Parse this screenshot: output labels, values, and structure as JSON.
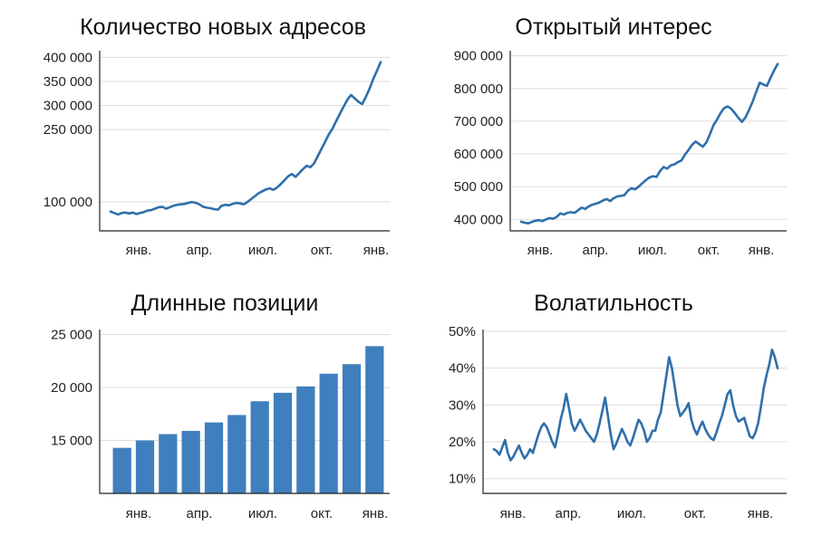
{
  "chart_data": [
    {
      "type": "line",
      "title": "Количество новых адресов",
      "x_ticks": [
        "янв.",
        "апр.",
        "июл.",
        "окт.",
        "янв."
      ],
      "y_ticks": [
        "100 000",
        "250 000",
        "300 000",
        "350 000",
        "400 000"
      ],
      "y_tick_values": [
        100000,
        250000,
        300000,
        350000,
        400000
      ],
      "ylim": [
        40000,
        410000
      ],
      "grid": true,
      "values": [
        80000,
        77000,
        74000,
        77000,
        78000,
        76000,
        78000,
        75000,
        77000,
        79000,
        82000,
        83000,
        86000,
        89000,
        90000,
        86000,
        89000,
        92000,
        94000,
        95000,
        96000,
        98000,
        100000,
        98000,
        95000,
        90000,
        88000,
        87000,
        85000,
        84000,
        92000,
        94000,
        93000,
        96000,
        98000,
        97000,
        95000,
        100000,
        106000,
        112000,
        118000,
        122000,
        126000,
        128000,
        125000,
        130000,
        137000,
        145000,
        153000,
        158000,
        152000,
        160000,
        168000,
        175000,
        172000,
        180000,
        195000,
        210000,
        225000,
        240000,
        252000,
        268000,
        283000,
        298000,
        312000,
        322000,
        315000,
        308000,
        303000,
        318000,
        335000,
        355000,
        372000,
        390000
      ]
    },
    {
      "type": "line",
      "title": "Открытый интерес",
      "x_ticks": [
        "янв.",
        "апр.",
        "июл.",
        "окт.",
        "янв."
      ],
      "y_ticks": [
        "400 000",
        "500 000",
        "600 000",
        "700 000",
        "800 000",
        "900 000"
      ],
      "y_tick_values": [
        400000,
        500000,
        600000,
        700000,
        800000,
        900000
      ],
      "ylim": [
        365000,
        910000
      ],
      "grid": true,
      "values": [
        393000,
        390000,
        388000,
        392000,
        396000,
        398000,
        395000,
        400000,
        404000,
        402000,
        408000,
        418000,
        415000,
        420000,
        422000,
        420000,
        428000,
        436000,
        432000,
        440000,
        445000,
        448000,
        452000,
        458000,
        462000,
        456000,
        465000,
        470000,
        472000,
        474000,
        488000,
        495000,
        492000,
        500000,
        510000,
        520000,
        528000,
        532000,
        530000,
        548000,
        560000,
        555000,
        565000,
        568000,
        575000,
        580000,
        598000,
        612000,
        628000,
        638000,
        630000,
        622000,
        635000,
        660000,
        688000,
        705000,
        725000,
        740000,
        745000,
        738000,
        725000,
        710000,
        698000,
        712000,
        735000,
        760000,
        790000,
        818000,
        812000,
        808000,
        832000,
        855000,
        875000
      ]
    },
    {
      "type": "bar",
      "title": "Длинные позиции",
      "x_ticks": [
        "янв.",
        "апр.",
        "июл.",
        "окт.",
        "янв."
      ],
      "y_ticks": [
        "15 000",
        "20 000",
        "25 000"
      ],
      "y_tick_values": [
        15000,
        20000,
        25000
      ],
      "ylim": [
        10000,
        25300
      ],
      "grid": true,
      "values": [
        14300,
        15000,
        15600,
        15900,
        16700,
        17400,
        18700,
        19500,
        20100,
        21300,
        22200,
        23900
      ]
    },
    {
      "type": "line",
      "title": "Волатильность",
      "x_ticks": [
        "янв.",
        "апр.",
        "июл.",
        "окт.",
        "янв."
      ],
      "y_ticks": [
        "10%",
        "20%",
        "30%",
        "40%",
        "50%"
      ],
      "y_tick_values": [
        10,
        20,
        30,
        40,
        50
      ],
      "ylim": [
        6,
        50
      ],
      "grid": true,
      "values": [
        18,
        17.5,
        16.5,
        18.5,
        20.5,
        17,
        15,
        16,
        17.5,
        19,
        17,
        15.5,
        16.5,
        18,
        17,
        19.5,
        22,
        24,
        25,
        24,
        22,
        20,
        18.5,
        22,
        26,
        29,
        33,
        29,
        25,
        23,
        24.5,
        26,
        24.5,
        23,
        22,
        21,
        20,
        22,
        25,
        28.5,
        32,
        27,
        22,
        18,
        19.5,
        21.5,
        23.5,
        22,
        20,
        19,
        21,
        23.5,
        26,
        25,
        23,
        20,
        21,
        23,
        23,
        26,
        28,
        33,
        38,
        43,
        40,
        35,
        30,
        27,
        28,
        29,
        30.5,
        26,
        23.5,
        22,
        24,
        25.5,
        23.5,
        22,
        21,
        20.5,
        22.5,
        25,
        27,
        30,
        33,
        34,
        30,
        27,
        25.5,
        26,
        26.5,
        24,
        21.5,
        21,
        22.5,
        25,
        29.5,
        34.5,
        38,
        41,
        45,
        43,
        40
      ]
    }
  ]
}
